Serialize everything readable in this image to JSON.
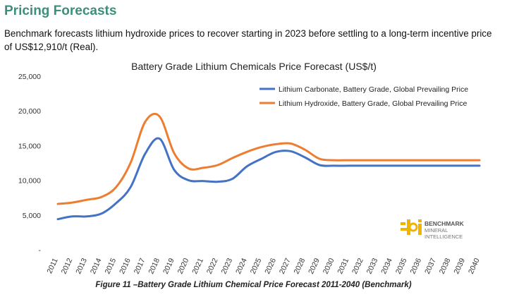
{
  "page": {
    "heading": "Pricing Forecasts",
    "subtitle": "Benchmark forecasts lithium hydroxide prices to recover starting in 2023 before settling to a long-term incentive price of US$12,910/t (Real).",
    "caption": "Figure 11 –Battery Grade Lithium Chemical Price Forecast 2011-2040 (Benchmark)"
  },
  "logo": {
    "line1": "BENCHMARK",
    "line2": "MINERAL",
    "line3": "INTELLIGENCE"
  },
  "chart_data": {
    "type": "line",
    "title": "Battery Grade Lithium Chemicals Price Forecast (US$/t)",
    "xlabel": "",
    "ylabel": "",
    "categories": [
      "2011",
      "2012",
      "2013",
      "2014",
      "2015",
      "2016",
      "2017",
      "2018",
      "2019",
      "2020",
      "2021",
      "2022",
      "2023",
      "2024",
      "2025",
      "2026",
      "2027",
      "2028",
      "2029",
      "2030",
      "2031",
      "2032",
      "2033",
      "2034",
      "2035",
      "2036",
      "2037",
      "2038",
      "2039",
      "2040"
    ],
    "ylim": [
      0,
      25000
    ],
    "yticks": [
      "-",
      "5,000",
      "10,000",
      "15,000",
      "20,000",
      "25,000"
    ],
    "grid": false,
    "legend_position": "top-right",
    "series": [
      {
        "name": "Lithium Carbonate, Battery Grade, Global Prevailing Price",
        "color": "#4472c4",
        "values": [
          4400,
          4800,
          4800,
          5200,
          6700,
          9000,
          13800,
          16000,
          11500,
          10000,
          9900,
          9800,
          10200,
          12000,
          13100,
          14100,
          14200,
          13300,
          12200,
          12100,
          12100,
          12100,
          12100,
          12100,
          12100,
          12100,
          12100,
          12100,
          12100,
          12100
        ]
      },
      {
        "name": "Lithium Hydroxide, Battery Grade, Global Prevailing Price",
        "color": "#ed7d31",
        "values": [
          6600,
          6800,
          7200,
          7600,
          9000,
          12500,
          18400,
          19200,
          13900,
          11700,
          11800,
          12200,
          13200,
          14100,
          14800,
          15200,
          15300,
          14400,
          13100,
          12900,
          12900,
          12900,
          12900,
          12900,
          12900,
          12900,
          12900,
          12900,
          12900,
          12900
        ]
      }
    ]
  }
}
